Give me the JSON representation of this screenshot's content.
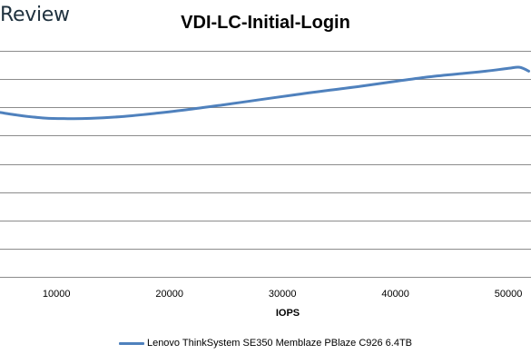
{
  "brand": {
    "text": "Review"
  },
  "chart_data": {
    "type": "line",
    "title": "VDI-LC-Initial-Login",
    "xlabel": "IOPS",
    "ylabel": "",
    "xlim": [
      5000,
      52000
    ],
    "ylim": [
      0,
      8
    ],
    "x_ticks": [
      10000,
      20000,
      30000,
      40000,
      50000
    ],
    "x_tick_labels": [
      "10000",
      "20000",
      "30000",
      "40000",
      "50000"
    ],
    "y_gridlines": [
      0,
      1,
      2,
      3,
      4,
      5,
      6,
      7,
      8
    ],
    "grid": "horizontal",
    "legend_position": "bottom",
    "series": [
      {
        "name": "Lenovo ThinkSystem SE350 Memblaze PBlaze C926 6.4TB",
        "color": "#4f81bd",
        "x": [
          5000,
          7000,
          9000,
          11000,
          13000,
          16000,
          19000,
          22000,
          25000,
          28000,
          31000,
          34000,
          37000,
          40000,
          43000,
          46000,
          48000,
          50000,
          51000,
          51800
        ],
        "y": [
          5.82,
          5.7,
          5.62,
          5.6,
          5.61,
          5.68,
          5.8,
          5.94,
          6.1,
          6.27,
          6.44,
          6.6,
          6.75,
          6.92,
          7.08,
          7.2,
          7.28,
          7.38,
          7.42,
          7.28
        ]
      }
    ]
  }
}
